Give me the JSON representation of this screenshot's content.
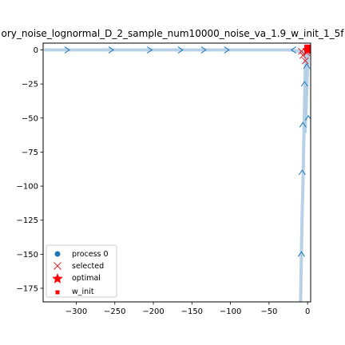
{
  "chart_data": {
    "type": "line",
    "title": "ory_noise_lognormal_D_2_sample_num10000_noise_va_1.9_w_init_1_5f",
    "xlabel": "",
    "ylabel": "",
    "xlim": [
      -343,
      4
    ],
    "ylim": [
      -185,
      5
    ],
    "xticks": [
      -300,
      -250,
      -200,
      -150,
      -100,
      -50,
      0
    ],
    "yticks": [
      0,
      -25,
      -50,
      -75,
      -100,
      -125,
      -150,
      -175
    ],
    "xtick_labels": [
      "−300",
      "−250",
      "−200",
      "−150",
      "−100",
      "−50",
      "0"
    ],
    "ytick_labels": [
      "0",
      "−25",
      "−50",
      "−75",
      "−100",
      "−125",
      "−150",
      "−175"
    ],
    "grid": false,
    "legend_position": "lower-left",
    "series": [
      {
        "name": "process 0",
        "color": "#1f77b4",
        "path_color": "#b0cce4",
        "trajectories": [
          {
            "x": [
              -340,
              -250,
              -150,
              -60,
              -22,
              -10,
              -5,
              -2
            ],
            "y": [
              0,
              0,
              0,
              0,
              0,
              -1,
              -2,
              -2
            ]
          },
          {
            "x": [
              -9,
              -8,
              -7,
              -6,
              -5,
              -4,
              -3,
              -2
            ],
            "y": [
              -185,
              -150,
              -120,
              -100,
              -70,
              -40,
              -15,
              -2
            ]
          },
          {
            "x": [
              -3,
              -2,
              -1,
              0,
              1
            ],
            "y": [
              -60,
              -45,
              -30,
              -12,
              -2
            ]
          }
        ],
        "arrows": [
          {
            "x": -312,
            "y": 0,
            "dir": "right"
          },
          {
            "x": -255,
            "y": 0,
            "dir": "right"
          },
          {
            "x": -205,
            "y": 0,
            "dir": "right"
          },
          {
            "x": -165,
            "y": 0,
            "dir": "right"
          },
          {
            "x": -135,
            "y": 0,
            "dir": "right"
          },
          {
            "x": -105,
            "y": 0,
            "dir": "right"
          },
          {
            "x": -18,
            "y": 0,
            "dir": "left"
          },
          {
            "x": -8,
            "y": -150,
            "dir": "up"
          },
          {
            "x": -7,
            "y": -90,
            "dir": "up"
          },
          {
            "x": -6,
            "y": -55,
            "dir": "up"
          },
          {
            "x": -4,
            "y": -25,
            "dir": "up"
          },
          {
            "x": 1,
            "y": -50,
            "dir": "up"
          },
          {
            "x": -1,
            "y": -12,
            "dir": "up"
          }
        ]
      }
    ],
    "selected": {
      "name": "selected",
      "color": "#d62728",
      "points": [
        {
          "x": -8,
          "y": -1
        },
        {
          "x": -6,
          "y": -4
        },
        {
          "x": -3,
          "y": -8
        },
        {
          "x": -1,
          "y": -2
        }
      ]
    },
    "optimal": {
      "name": "optimal",
      "color": "#ff0000",
      "points": [
        {
          "x": 0,
          "y": 0
        }
      ]
    },
    "w_init": {
      "name": "w_init",
      "color": "#ff0000",
      "points": [
        {
          "x": 1,
          "y": 1
        }
      ]
    },
    "legend": [
      "process 0",
      "selected",
      "optimal",
      "w_init"
    ]
  }
}
